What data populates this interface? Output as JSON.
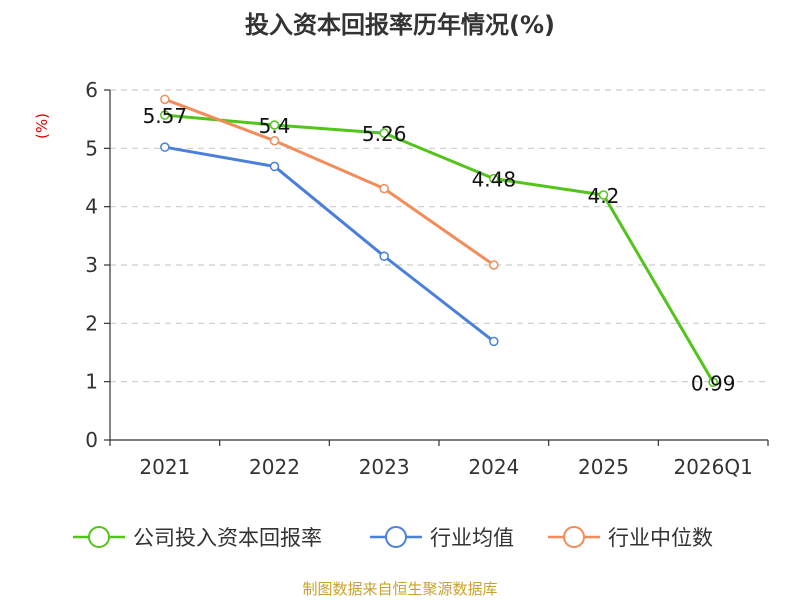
{
  "chart_data": {
    "type": "line",
    "title": "投入资本回报率历年情况(%)",
    "ylabel": "(%)",
    "xlabel": "",
    "categories": [
      "2021",
      "2022",
      "2023",
      "2024",
      "2025",
      "2026Q1"
    ],
    "ylim": [
      0,
      6
    ],
    "yticks": [
      "0",
      "1",
      "2",
      "3",
      "4",
      "5",
      "6"
    ],
    "grid": true,
    "legend_position": "bottom",
    "series": [
      {
        "name": "公司投入资本回报率",
        "values": [
          5.57,
          5.4,
          5.26,
          4.48,
          4.2,
          0.99
        ],
        "labels": [
          "5.57",
          "5.4",
          "5.26",
          "4.48",
          "4.2",
          "0.99"
        ],
        "color": "#52c41a"
      },
      {
        "name": "行业均值",
        "values": [
          5.02,
          4.69,
          3.15,
          1.69,
          null,
          null
        ],
        "color": "#4a7fdb"
      },
      {
        "name": "行业中位数",
        "values": [
          5.84,
          5.13,
          4.31,
          3.0,
          null,
          null
        ],
        "color": "#f28c5a"
      }
    ]
  },
  "source": "制图数据来自恒生聚源数据库",
  "colors": {
    "title": "#333333",
    "axis_label": "#e00000",
    "grid": "#cccccc",
    "source": "#c8a033"
  }
}
